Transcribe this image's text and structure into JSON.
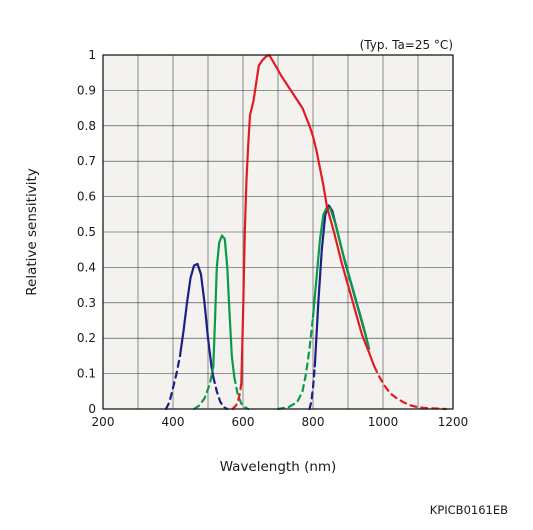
{
  "chart_data": {
    "type": "line",
    "title": "",
    "xlabel": "Wavelength (nm)",
    "ylabel": "Relative sensitivity",
    "annotation": "(Typ. Ta=25 °C)",
    "code": "KPICB0161EB",
    "xlim": [
      200,
      1200
    ],
    "ylim": [
      0,
      1
    ],
    "x_ticks": [
      "200",
      "400",
      "600",
      "800",
      "1000",
      "1200"
    ],
    "y_ticks": [
      "0",
      "0.1",
      "0.2",
      "0.3",
      "0.4",
      "0.5",
      "0.6",
      "0.7",
      "0.8",
      "0.9",
      "1"
    ],
    "grid": true,
    "plot_background": "#f3f2ee",
    "grid_color": "#333333",
    "series": [
      {
        "color": "#1a1f8a",
        "dashed": [
          [
            380,
            0
          ],
          [
            390,
            0.02
          ],
          [
            400,
            0.06
          ],
          [
            410,
            0.1
          ],
          [
            420,
            0.15
          ]
        ],
        "solid": [
          [
            420,
            0.15
          ],
          [
            430,
            0.22
          ],
          [
            440,
            0.3
          ],
          [
            450,
            0.37
          ],
          [
            460,
            0.405
          ],
          [
            470,
            0.41
          ],
          [
            480,
            0.38
          ],
          [
            490,
            0.3
          ],
          [
            500,
            0.2
          ],
          [
            510,
            0.12
          ],
          [
            515,
            0.09
          ]
        ],
        "dashed_tail": [
          [
            515,
            0.09
          ],
          [
            525,
            0.05
          ],
          [
            535,
            0.02
          ],
          [
            545,
            0.005
          ],
          [
            555,
            0
          ]
        ]
      },
      {
        "color": "#1a1f8a",
        "dashed": [
          [
            790,
            0
          ],
          [
            795,
            0.02
          ],
          [
            800,
            0.06
          ],
          [
            805,
            0.12
          ]
        ],
        "solid": [
          [
            805,
            0.12
          ],
          [
            815,
            0.3
          ],
          [
            825,
            0.45
          ],
          [
            835,
            0.55
          ],
          [
            845,
            0.575
          ],
          [
            855,
            0.56
          ],
          [
            870,
            0.5
          ],
          [
            890,
            0.42
          ],
          [
            910,
            0.35
          ],
          [
            930,
            0.28
          ],
          [
            950,
            0.21
          ],
          [
            960,
            0.17
          ]
        ]
      },
      {
        "color": "#0a9a4a",
        "dashed": [
          [
            460,
            0
          ],
          [
            475,
            0.01
          ],
          [
            490,
            0.03
          ],
          [
            505,
            0.07
          ],
          [
            515,
            0.12
          ]
        ],
        "solid": [
          [
            515,
            0.12
          ],
          [
            520,
            0.25
          ],
          [
            525,
            0.4
          ],
          [
            532,
            0.47
          ],
          [
            540,
            0.49
          ],
          [
            548,
            0.48
          ],
          [
            555,
            0.4
          ],
          [
            560,
            0.3
          ],
          [
            568,
            0.15
          ],
          [
            575,
            0.09
          ]
        ],
        "dashed_tail": [
          [
            575,
            0.09
          ],
          [
            585,
            0.04
          ],
          [
            595,
            0.015
          ],
          [
            605,
            0.005
          ],
          [
            615,
            0
          ]
        ]
      },
      {
        "color": "#0a9a4a",
        "dashed": [
          [
            700,
            0
          ],
          [
            730,
            0.005
          ],
          [
            755,
            0.02
          ],
          [
            770,
            0.05
          ],
          [
            780,
            0.1
          ],
          [
            790,
            0.17
          ],
          [
            800,
            0.26
          ]
        ],
        "solid": [
          [
            800,
            0.26
          ],
          [
            810,
            0.37
          ],
          [
            820,
            0.48
          ],
          [
            830,
            0.55
          ],
          [
            840,
            0.57
          ],
          [
            850,
            0.565
          ],
          [
            865,
            0.52
          ],
          [
            885,
            0.44
          ],
          [
            905,
            0.37
          ],
          [
            925,
            0.3
          ],
          [
            945,
            0.23
          ],
          [
            960,
            0.17
          ]
        ]
      },
      {
        "color": "#e21b23",
        "dashed": [
          [
            570,
            0
          ],
          [
            575,
            0.005
          ],
          [
            580,
            0.01
          ],
          [
            585,
            0.02
          ],
          [
            590,
            0.04
          ],
          [
            595,
            0.07
          ]
        ],
        "solid": [
          [
            595,
            0.07
          ],
          [
            600,
            0.26
          ],
          [
            605,
            0.5
          ],
          [
            610,
            0.65
          ],
          [
            615,
            0.75
          ],
          [
            620,
            0.83
          ],
          [
            630,
            0.87
          ],
          [
            645,
            0.97
          ],
          [
            655,
            0.985
          ],
          [
            665,
            0.995
          ],
          [
            675,
            1.0
          ],
          [
            690,
            0.975
          ],
          [
            710,
            0.94
          ],
          [
            730,
            0.91
          ],
          [
            750,
            0.88
          ],
          [
            770,
            0.85
          ],
          [
            790,
            0.8
          ],
          [
            800,
            0.77
          ],
          [
            810,
            0.73
          ],
          [
            820,
            0.68
          ],
          [
            830,
            0.63
          ],
          [
            840,
            0.57
          ],
          [
            860,
            0.5
          ],
          [
            880,
            0.42
          ],
          [
            900,
            0.35
          ],
          [
            920,
            0.28
          ],
          [
            940,
            0.21
          ],
          [
            960,
            0.16
          ],
          [
            975,
            0.12
          ]
        ],
        "dashed_tail": [
          [
            975,
            0.12
          ],
          [
            990,
            0.09
          ],
          [
            1005,
            0.065
          ],
          [
            1020,
            0.045
          ],
          [
            1040,
            0.03
          ],
          [
            1060,
            0.018
          ],
          [
            1080,
            0.01
          ],
          [
            1100,
            0.005
          ],
          [
            1130,
            0.002
          ],
          [
            1160,
            0.001
          ],
          [
            1180,
            0
          ]
        ]
      }
    ]
  }
}
